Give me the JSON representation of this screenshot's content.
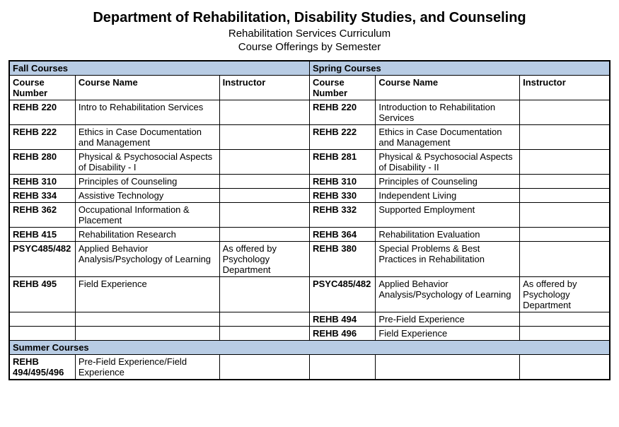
{
  "header": {
    "dept": "Department of Rehabilitation, Disability Studies, and Counseling",
    "curriculum": "Rehabilitation Services Curriculum",
    "offerings": "Course Offerings by Semester"
  },
  "columns": {
    "num": "Course Number",
    "name": "Course Name",
    "inst": "Instructor"
  },
  "semesters": {
    "fall": "Fall Courses",
    "spring": "Spring Courses",
    "summer": "Summer Courses"
  },
  "fall": [
    {
      "num": "REHB 220",
      "name": "Intro to Rehabilitation Services",
      "inst": ""
    },
    {
      "num": "REHB 222",
      "name": "Ethics in Case Documentation and Management",
      "inst": ""
    },
    {
      "num": "REHB 280",
      "name": "Physical & Psychosocial Aspects of Disability - I",
      "inst": ""
    },
    {
      "num": "REHB 310",
      "name": "Principles of Counseling",
      "inst": ""
    },
    {
      "num": "REHB 334",
      "name": "Assistive Technology",
      "inst": ""
    },
    {
      "num": "REHB 362",
      "name": "Occupational Information & Placement",
      "inst": ""
    },
    {
      "num": "REHB 415",
      "name": "Rehabilitation Research",
      "inst": ""
    },
    {
      "num": "PSYC485/482",
      "name": "Applied Behavior Analysis/Psychology of Learning",
      "inst": "As offered by Psychology Department"
    },
    {
      "num": "REHB 495",
      "name": "Field Experience",
      "inst": ""
    },
    {
      "num": "",
      "name": "",
      "inst": ""
    },
    {
      "num": "",
      "name": "",
      "inst": ""
    }
  ],
  "spring": [
    {
      "num": "REHB 220",
      "name": "Introduction to Rehabilitation Services",
      "inst": ""
    },
    {
      "num": "REHB 222",
      "name": "Ethics in Case Documentation and Management",
      "inst": ""
    },
    {
      "num": "REHB 281",
      "name": "Physical & Psychosocial Aspects of Disability - II",
      "inst": ""
    },
    {
      "num": "REHB 310",
      "name": "Principles of Counseling",
      "inst": ""
    },
    {
      "num": "REHB 330",
      "name": "Independent Living",
      "inst": ""
    },
    {
      "num": "REHB 332",
      "name": "Supported Employment",
      "inst": ""
    },
    {
      "num": "REHB 364",
      "name": "Rehabilitation Evaluation",
      "inst": ""
    },
    {
      "num": "REHB 380",
      "name": "Special Problems & Best Practices in Rehabilitation",
      "inst": ""
    },
    {
      "num": "PSYC485/482",
      "name": "Applied Behavior Analysis/Psychology of Learning",
      "inst": "As offered by Psychology Department"
    },
    {
      "num": "REHB 494",
      "name": "Pre-Field Experience",
      "inst": ""
    },
    {
      "num": "REHB 496",
      "name": "Field Experience",
      "inst": ""
    }
  ],
  "summer": [
    {
      "num": "REHB 494/495/496",
      "name": "Pre-Field Experience/Field Experience",
      "inst": ""
    }
  ],
  "style": {
    "header_bg": "#b8cce4",
    "border_color": "#000000",
    "body_bg": "#ffffff",
    "text_color": "#000000",
    "title_fontsize": 20,
    "subtitle_fontsize": 15,
    "cell_fontsize": 13,
    "sem_header_fontsize": 16,
    "col_widths_pct": {
      "num": 11,
      "name": 24,
      "inst": 15
    }
  }
}
